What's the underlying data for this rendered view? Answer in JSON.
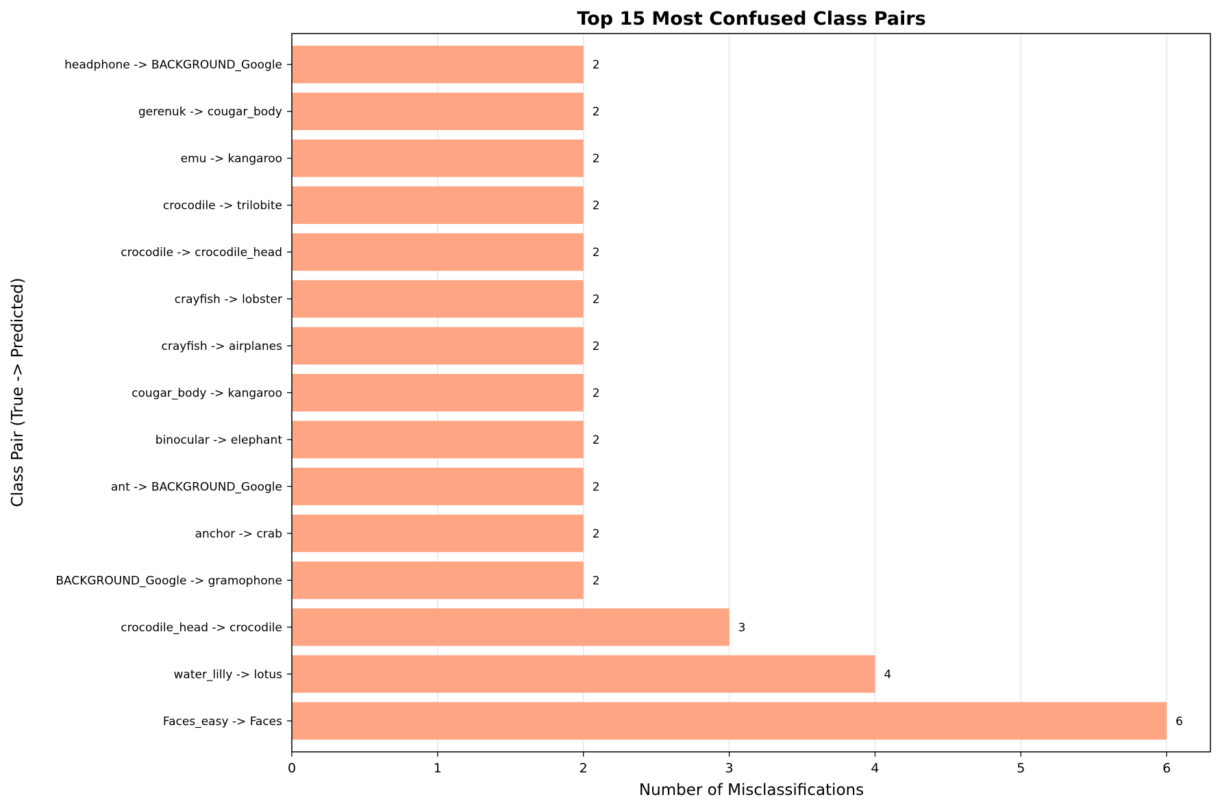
{
  "chart_data": {
    "type": "bar",
    "orientation": "horizontal",
    "title": "Top 15 Most Confused Class Pairs",
    "xlabel": "Number of Misclassifications",
    "ylabel": "Class Pair (True -> Predicted)",
    "xlim": [
      0,
      6.3
    ],
    "x_ticks": [
      "0",
      "1",
      "2",
      "3",
      "4",
      "5",
      "6"
    ],
    "grid": "vertical",
    "bar_color": "#ffa584",
    "categories": [
      "Faces_easy -> Faces",
      "water_lilly -> lotus",
      "crocodile_head -> crocodile",
      "BACKGROUND_Google -> gramophone",
      "anchor -> crab",
      "ant -> BACKGROUND_Google",
      "binocular -> elephant",
      "cougar_body -> kangaroo",
      "crayfish -> airplanes",
      "crayfish -> lobster",
      "crocodile -> crocodile_head",
      "crocodile -> trilobite",
      "emu -> kangaroo",
      "gerenuk -> cougar_body",
      "headphone -> BACKGROUND_Google"
    ],
    "values": [
      6,
      4,
      3,
      2,
      2,
      2,
      2,
      2,
      2,
      2,
      2,
      2,
      2,
      2,
      2
    ],
    "data_labels": [
      "6",
      "4",
      "3",
      "2",
      "2",
      "2",
      "2",
      "2",
      "2",
      "2",
      "2",
      "2",
      "2",
      "2",
      "2"
    ]
  }
}
